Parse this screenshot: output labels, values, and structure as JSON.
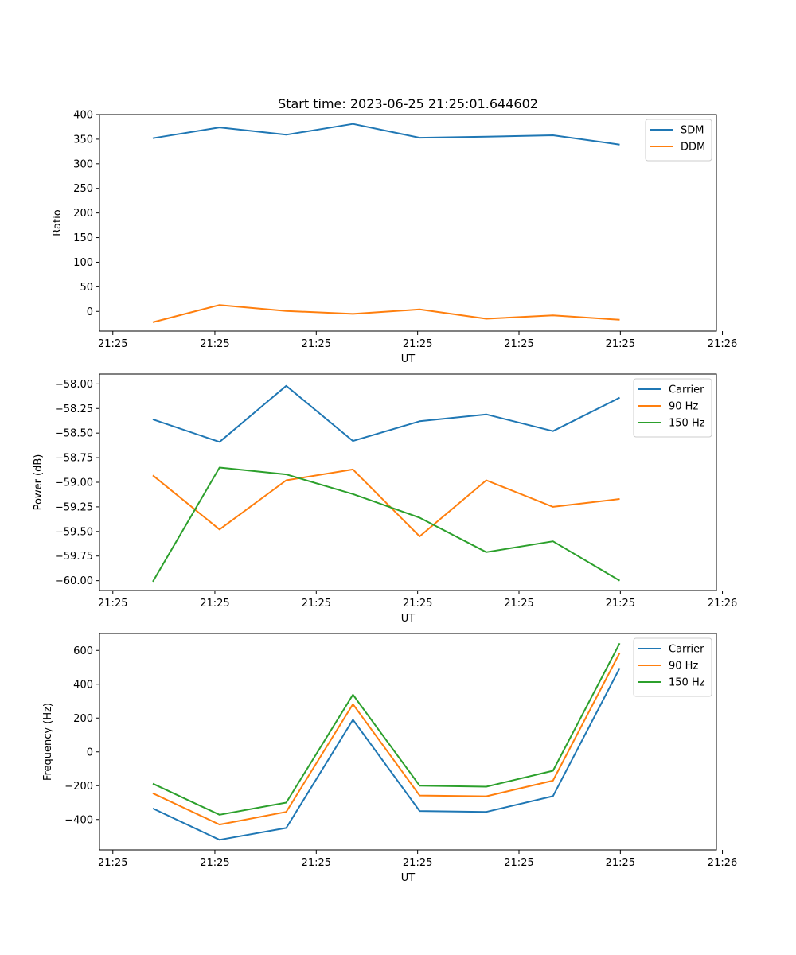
{
  "figure_title": "Start time: 2023-06-25 21:25:01.644602",
  "chart_data": [
    {
      "type": "line",
      "title": "Start time: 2023-06-25 21:25:01.644602",
      "xlabel": "UT",
      "ylabel": "Ratio",
      "x": [
        1,
        2,
        3,
        4,
        5,
        6,
        7,
        8
      ],
      "xlim": [
        0.2,
        9.45
      ],
      "x_ticks": [
        0.4,
        1.93,
        3.45,
        4.97,
        6.49,
        8.01,
        9.54
      ],
      "x_tick_labels": [
        "21:25",
        "21:25",
        "21:25",
        "21:25",
        "21:25",
        "21:25",
        "21:26"
      ],
      "ylim": [
        -40,
        400
      ],
      "y_ticks": [
        0,
        50,
        100,
        150,
        200,
        250,
        300,
        350,
        400
      ],
      "y_tick_labels": [
        "0",
        "50",
        "100",
        "150",
        "200",
        "250",
        "300",
        "350",
        "400"
      ],
      "legend": "top-right",
      "series": [
        {
          "name": "SDM",
          "color": "#1f77b4",
          "values": [
            352,
            374,
            359,
            381,
            353,
            355,
            358,
            339
          ]
        },
        {
          "name": "DDM",
          "color": "#ff7f0e",
          "values": [
            -22,
            13,
            1,
            -5,
            4,
            -15,
            -8,
            -17
          ]
        }
      ]
    },
    {
      "type": "line",
      "title": "",
      "xlabel": "UT",
      "ylabel": "Power (dB)",
      "x": [
        1,
        2,
        3,
        4,
        5,
        6,
        7,
        8
      ],
      "xlim": [
        0.2,
        9.45
      ],
      "x_ticks": [
        0.4,
        1.93,
        3.45,
        4.97,
        6.49,
        8.01,
        9.54
      ],
      "x_tick_labels": [
        "21:25",
        "21:25",
        "21:25",
        "21:25",
        "21:25",
        "21:25",
        "21:26"
      ],
      "ylim": [
        -60.1,
        -57.9
      ],
      "y_ticks": [
        -60.0,
        -59.75,
        -59.5,
        -59.25,
        -59.0,
        -58.75,
        -58.5,
        -58.25,
        -58.0
      ],
      "y_tick_labels": [
        "−60.00",
        "−59.75",
        "−59.50",
        "−59.25",
        "−59.00",
        "−58.75",
        "−58.50",
        "−58.25",
        "−58.00"
      ],
      "legend": "top-right",
      "series": [
        {
          "name": "Carrier",
          "color": "#1f77b4",
          "values": [
            -58.36,
            -58.59,
            -58.02,
            -58.58,
            -58.38,
            -58.31,
            -58.48,
            -58.14
          ]
        },
        {
          "name": "90 Hz",
          "color": "#ff7f0e",
          "values": [
            -58.93,
            -59.48,
            -58.98,
            -58.87,
            -59.55,
            -58.98,
            -59.25,
            -59.17
          ]
        },
        {
          "name": "150 Hz",
          "color": "#2ca02c",
          "values": [
            -60.01,
            -58.85,
            -58.92,
            -59.12,
            -59.36,
            -59.71,
            -59.6,
            -60.0
          ]
        }
      ]
    },
    {
      "type": "line",
      "title": "",
      "xlabel": "UT",
      "ylabel": "Frequency (Hz)",
      "x": [
        1,
        2,
        3,
        4,
        5,
        6,
        7,
        8
      ],
      "xlim": [
        0.2,
        9.45
      ],
      "x_ticks": [
        0.4,
        1.93,
        3.45,
        4.97,
        6.49,
        8.01,
        9.54
      ],
      "x_tick_labels": [
        "21:25",
        "21:25",
        "21:25",
        "21:25",
        "21:25",
        "21:25",
        "21:26"
      ],
      "ylim": [
        -580,
        700
      ],
      "y_ticks": [
        -400,
        -200,
        0,
        200,
        400,
        600
      ],
      "y_tick_labels": [
        "−400",
        "−200",
        "0",
        "200",
        "400",
        "600"
      ],
      "legend": "top-right",
      "series": [
        {
          "name": "Carrier",
          "color": "#1f77b4",
          "values": [
            -335,
            -520,
            -450,
            190,
            -350,
            -355,
            -262,
            495
          ]
        },
        {
          "name": "90 Hz",
          "color": "#ff7f0e",
          "values": [
            -245,
            -430,
            -355,
            282,
            -258,
            -263,
            -170,
            585
          ]
        },
        {
          "name": "150 Hz",
          "color": "#2ca02c",
          "values": [
            -188,
            -372,
            -300,
            338,
            -200,
            -206,
            -112,
            642
          ]
        }
      ]
    }
  ]
}
